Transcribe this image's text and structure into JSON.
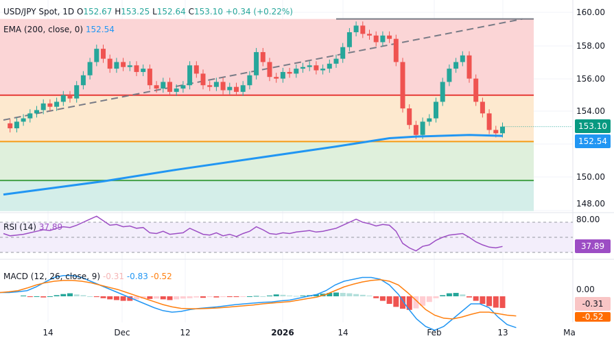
{
  "header": {
    "symbol": "USD/JPY Spot, 1D",
    "o_label": "O",
    "o": "152.67",
    "h_label": "H",
    "h": "153.25",
    "l_label": "L",
    "l": "152.64",
    "c_label": "C",
    "c": "153.10",
    "change": "+0.34 (+0.22%)"
  },
  "ema_legend": {
    "label": "EMA (200, close, 0)",
    "value": "152.54"
  },
  "rsi_legend": {
    "label": "RSI (14)",
    "value": "37.89"
  },
  "macd_legend": {
    "label": "MACD (12, 26, close, 9)",
    "hist": "-0.31",
    "macd": "-0.83",
    "signal": "-0.52"
  },
  "price_axis": [
    "160.00",
    "158.00",
    "156.00",
    "154.00",
    "150.00",
    "148.00"
  ],
  "rsi_axis": [
    "80.00"
  ],
  "macd_axis": [
    "0.00"
  ],
  "tags": {
    "close": "153.10",
    "ema": "152.54",
    "rsi": "37.89",
    "macd_hist": "-0.31",
    "macd_signal": "-0.52"
  },
  "date_axis": [
    "14",
    "Dec",
    "12",
    "2026",
    "14",
    "Feb",
    "13",
    "Ma"
  ],
  "colors": {
    "up": "#26a69a",
    "down": "#ef5350",
    "ema": "#2196f3",
    "rsi": "#9c4dc4",
    "macd": "#2196f3",
    "signal": "#ff7f0e",
    "red_zone": "#fbd5d6",
    "orange_zone": "#fde9cf",
    "green_zone": "#dff0dc",
    "teal_zone": "#d4eee9"
  },
  "chart_data": {
    "type": "candlestick",
    "title": "USD/JPY Spot, 1D",
    "ylim": [
      148,
      160
    ],
    "levels": [
      {
        "value": 159.6,
        "color": "#787b86"
      },
      {
        "value": 155.0,
        "color": "#e53935"
      },
      {
        "value": 152.2,
        "color": "#f59b16"
      },
      {
        "value": 149.85,
        "color": "#43a047"
      }
    ],
    "trendline": [
      [
        0,
        153.5
      ],
      [
        78,
        159.6
      ]
    ],
    "close": [
      153.3,
      153.0,
      153.4,
      153.6,
      153.9,
      154.1,
      154.5,
      154.3,
      154.6,
      155.0,
      154.8,
      155.6,
      156.2,
      157.0,
      157.8,
      157.2,
      156.6,
      157.0,
      156.7,
      156.8,
      156.4,
      156.6,
      155.6,
      155.4,
      155.8,
      155.2,
      155.4,
      155.6,
      156.8,
      156.3,
      155.6,
      155.5,
      155.8,
      155.3,
      155.5,
      155.2,
      155.6,
      156.2,
      157.6,
      157.0,
      156.1,
      156.0,
      156.4,
      156.3,
      156.6,
      156.7,
      156.8,
      156.5,
      156.6,
      156.9,
      157.2,
      157.9,
      158.8,
      159.2,
      158.7,
      158.6,
      158.2,
      158.6,
      158.4,
      157.0,
      154.2,
      153.2,
      152.6,
      153.4,
      153.6,
      154.6,
      155.8,
      156.6,
      157.0,
      157.4,
      156.0,
      154.6,
      153.9,
      152.9,
      152.7,
      153.1
    ],
    "ema": [
      [
        0,
        149.0
      ],
      [
        15,
        149.8
      ],
      [
        26,
        150.5
      ],
      [
        38,
        151.2
      ],
      [
        50,
        151.9
      ],
      [
        58,
        152.4
      ],
      [
        62,
        152.5
      ],
      [
        70,
        152.6
      ],
      [
        75,
        152.54
      ]
    ],
    "rsi": [
      55,
      52,
      53,
      54,
      56,
      58,
      60,
      59,
      62,
      64,
      63,
      66,
      70,
      74,
      78,
      72,
      66,
      67,
      64,
      65,
      62,
      63,
      56,
      55,
      58,
      54,
      55,
      56,
      62,
      58,
      54,
      53,
      56,
      52,
      54,
      51,
      55,
      58,
      64,
      60,
      55,
      54,
      56,
      55,
      57,
      58,
      59,
      57,
      58,
      60,
      62,
      66,
      70,
      74,
      70,
      68,
      65,
      67,
      66,
      58,
      42,
      36,
      32,
      38,
      40,
      46,
      50,
      53,
      54,
      55,
      50,
      44,
      40,
      37,
      36,
      37.89
    ],
    "macd_hist": [
      0.02,
      -0.02,
      0.0,
      -0.03,
      0.0,
      0.03,
      0.06,
      0.08,
      0.05,
      0.03,
      0.0,
      -0.02,
      -0.05,
      -0.08,
      -0.1,
      -0.12,
      -0.12,
      -0.08,
      -0.06,
      -0.07,
      -0.06,
      -0.08,
      -0.1,
      -0.08,
      -0.06,
      -0.05,
      -0.03,
      -0.04,
      -0.02,
      -0.03,
      -0.02,
      -0.02,
      -0.02,
      -0.01,
      0.0,
      0.01,
      0.0,
      0.02,
      0.05,
      0.04,
      0.02,
      0.01,
      0.02,
      0.03,
      0.05,
      0.07,
      0.09,
      0.1,
      0.09,
      0.08,
      0.06,
      0.04,
      0.02,
      -0.05,
      -0.12,
      -0.2,
      -0.28,
      -0.33,
      -0.36,
      -0.32,
      -0.25,
      -0.15,
      -0.05,
      0.03,
      0.08,
      0.09,
      0.05,
      -0.03,
      -0.12,
      -0.2,
      -0.26,
      -0.3,
      -0.31
    ],
    "macd_line": [
      0.1,
      0.1,
      0.12,
      0.15,
      0.25,
      0.38,
      0.5,
      0.55,
      0.55,
      0.5,
      0.4,
      0.3,
      0.2,
      0.1,
      0.0,
      -0.1,
      -0.2,
      -0.3,
      -0.38,
      -0.42,
      -0.4,
      -0.35,
      -0.32,
      -0.3,
      -0.28,
      -0.25,
      -0.22,
      -0.2,
      -0.18,
      -0.16,
      -0.15,
      -0.12,
      -0.1,
      -0.05,
      0.0,
      0.05,
      0.15,
      0.3,
      0.4,
      0.45,
      0.5,
      0.5,
      0.45,
      0.3,
      0.05,
      -0.3,
      -0.6,
      -0.8,
      -0.9,
      -0.8,
      -0.6,
      -0.4,
      -0.2,
      -0.2,
      -0.3,
      -0.55,
      -0.75,
      -0.83
    ],
    "signal_line": [
      0.1,
      0.12,
      0.15,
      0.22,
      0.3,
      0.36,
      0.4,
      0.42,
      0.42,
      0.4,
      0.36,
      0.3,
      0.24,
      0.18,
      0.1,
      0.02,
      -0.06,
      -0.14,
      -0.22,
      -0.28,
      -0.32,
      -0.33,
      -0.33,
      -0.32,
      -0.31,
      -0.29,
      -0.27,
      -0.25,
      -0.23,
      -0.2,
      -0.18,
      -0.16,
      -0.14,
      -0.1,
      -0.06,
      -0.02,
      0.05,
      0.15,
      0.25,
      0.32,
      0.38,
      0.42,
      0.44,
      0.4,
      0.3,
      0.1,
      -0.12,
      -0.35,
      -0.5,
      -0.58,
      -0.6,
      -0.55,
      -0.48,
      -0.42,
      -0.42,
      -0.46,
      -0.5,
      -0.52
    ]
  }
}
